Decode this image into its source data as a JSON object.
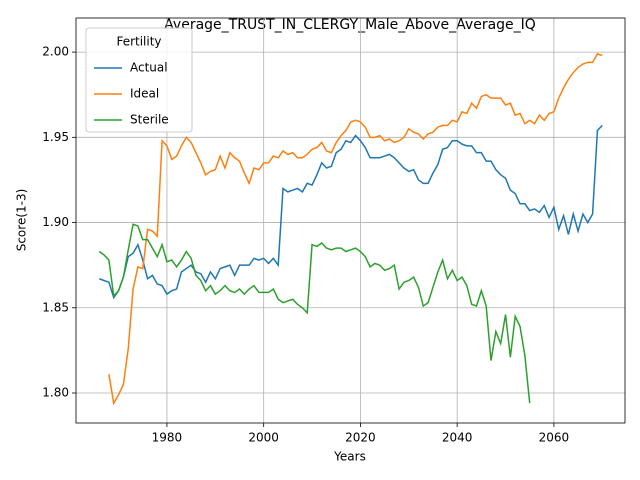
{
  "chart_data": {
    "type": "line",
    "title": "Average_TRUST_IN_CLERGY_Male_Above_Average_IQ",
    "xlabel": "Years",
    "ylabel": "Score(1-3)",
    "legend_title": "Fertility",
    "legend_loc": "upper left",
    "grid": true,
    "xlim": [
      1961.2,
      2074.7
    ],
    "ylim": [
      1.7824,
      2.02
    ],
    "xticks": [
      1980,
      2000,
      2020,
      2040,
      2060
    ],
    "yticks": [
      {
        "value": 1.8,
        "label": "1.80"
      },
      {
        "value": 1.85,
        "label": "1.85"
      },
      {
        "value": 1.9,
        "label": "1.90"
      },
      {
        "value": 1.95,
        "label": "1.95"
      },
      {
        "value": 2.0,
        "label": "2.00"
      }
    ],
    "x": [
      1966,
      1967,
      1968,
      1969,
      1970,
      1971,
      1972,
      1973,
      1974,
      1975,
      1976,
      1977,
      1978,
      1979,
      1980,
      1981,
      1982,
      1983,
      1984,
      1985,
      1986,
      1987,
      1988,
      1989,
      1990,
      1991,
      1992,
      1993,
      1994,
      1995,
      1996,
      1997,
      1998,
      1999,
      2000,
      2001,
      2002,
      2003,
      2004,
      2005,
      2006,
      2007,
      2008,
      2009,
      2010,
      2011,
      2012,
      2013,
      2014,
      2015,
      2016,
      2017,
      2018,
      2019,
      2020,
      2021,
      2022,
      2023,
      2024,
      2025,
      2026,
      2027,
      2028,
      2029,
      2030,
      2031,
      2032,
      2033,
      2034,
      2035,
      2036,
      2037,
      2038,
      2039,
      2040,
      2041,
      2042,
      2043,
      2044,
      2045,
      2046,
      2047,
      2048,
      2049,
      2050,
      2051,
      2052,
      2053,
      2054,
      2055,
      2056,
      2057,
      2058,
      2059,
      2060,
      2061,
      2062,
      2063,
      2064,
      2065,
      2066,
      2067,
      2068,
      2069,
      2070
    ],
    "series": [
      {
        "name": "Actual",
        "color": "#1f77b4",
        "values": [
          1.867,
          1.866,
          1.865,
          1.856,
          1.86,
          1.868,
          1.88,
          1.882,
          1.887,
          1.878,
          1.867,
          1.869,
          1.864,
          1.863,
          1.858,
          1.86,
          1.861,
          1.871,
          1.873,
          1.875,
          1.871,
          1.87,
          1.865,
          1.871,
          1.867,
          1.873,
          1.874,
          1.875,
          1.869,
          1.875,
          1.875,
          1.875,
          1.879,
          1.878,
          1.879,
          1.876,
          1.879,
          1.875,
          1.92,
          1.918,
          1.919,
          1.92,
          1.918,
          1.923,
          1.922,
          1.928,
          1.935,
          1.932,
          1.933,
          1.941,
          1.943,
          1.948,
          1.947,
          1.951,
          1.948,
          1.944,
          1.938,
          1.938,
          1.938,
          1.939,
          1.94,
          1.938,
          1.935,
          1.932,
          1.93,
          1.931,
          1.925,
          1.923,
          1.923,
          1.929,
          1.934,
          1.943,
          1.944,
          1.948,
          1.948,
          1.946,
          1.945,
          1.945,
          1.941,
          1.941,
          1.936,
          1.936,
          1.931,
          1.928,
          1.926,
          1.919,
          1.917,
          1.911,
          1.911,
          1.907,
          1.908,
          1.906,
          1.91,
          1.903,
          1.909,
          1.896,
          1.904,
          1.893,
          1.905,
          1.895,
          1.905,
          1.9,
          1.905,
          1.954,
          1.957
        ]
      },
      {
        "name": "Ideal",
        "color": "#ff7f0e",
        "values": [
          null,
          null,
          1.811,
          1.794,
          1.799,
          1.805,
          1.826,
          1.861,
          1.874,
          1.873,
          1.896,
          1.895,
          1.892,
          1.948,
          1.945,
          1.937,
          1.939,
          1.945,
          1.95,
          1.947,
          1.941,
          1.935,
          1.928,
          1.93,
          1.931,
          1.939,
          1.932,
          1.941,
          1.938,
          1.936,
          1.929,
          1.923,
          1.932,
          1.931,
          1.935,
          1.935,
          1.939,
          1.938,
          1.942,
          1.94,
          1.941,
          1.938,
          1.938,
          1.94,
          1.943,
          1.944,
          1.947,
          1.942,
          1.941,
          1.947,
          1.951,
          1.954,
          1.959,
          1.96,
          1.959,
          1.956,
          1.95,
          1.95,
          1.951,
          1.948,
          1.949,
          1.947,
          1.948,
          1.95,
          1.955,
          1.953,
          1.952,
          1.949,
          1.952,
          1.953,
          1.956,
          1.957,
          1.957,
          1.96,
          1.959,
          1.965,
          1.964,
          1.97,
          1.967,
          1.974,
          1.975,
          1.973,
          1.973,
          1.973,
          1.969,
          1.97,
          1.963,
          1.964,
          1.958,
          1.96,
          1.958,
          1.963,
          1.96,
          1.964,
          1.965,
          1.973,
          1.979,
          1.984,
          1.988,
          1.991,
          1.993,
          1.994,
          1.994,
          1.999,
          1.998
        ]
      },
      {
        "name": "Sterile",
        "color": "#2ca02c",
        "values": [
          1.883,
          1.881,
          1.878,
          1.857,
          1.86,
          1.868,
          1.884,
          1.899,
          1.898,
          1.89,
          1.89,
          1.885,
          1.88,
          1.887,
          1.877,
          1.878,
          1.874,
          1.878,
          1.883,
          1.879,
          1.869,
          1.866,
          1.86,
          1.863,
          1.858,
          1.86,
          1.863,
          1.86,
          1.859,
          1.861,
          1.858,
          1.861,
          1.863,
          1.859,
          1.859,
          1.859,
          1.861,
          1.855,
          1.853,
          1.854,
          1.855,
          1.852,
          1.85,
          1.847,
          1.887,
          1.886,
          1.888,
          1.885,
          1.884,
          1.885,
          1.885,
          1.883,
          1.884,
          1.885,
          1.883,
          1.88,
          1.874,
          1.876,
          1.875,
          1.872,
          1.873,
          1.875,
          1.861,
          1.865,
          1.866,
          1.868,
          1.862,
          1.851,
          1.853,
          1.862,
          1.871,
          1.878,
          1.867,
          1.872,
          1.866,
          1.868,
          1.863,
          1.852,
          1.851,
          1.86,
          1.851,
          1.819,
          1.836,
          1.829,
          1.846,
          1.821,
          1.845,
          1.839,
          1.822,
          1.794,
          null,
          null,
          null,
          null,
          null,
          null,
          null,
          null,
          null,
          null,
          null,
          null,
          null,
          null,
          null
        ]
      }
    ]
  }
}
